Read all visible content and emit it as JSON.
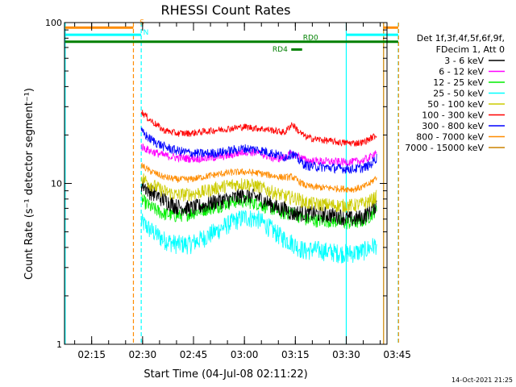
{
  "chart_data": {
    "type": "line",
    "title": "RHESSI Count Rates",
    "xlabel": "Start Time (04-Jul-08 02:11:22)",
    "ylabel": "Count Rate (s⁻¹ detector segment⁻¹)",
    "y_scale": "log",
    "ylim": [
      1,
      100
    ],
    "y_ticks": [
      1,
      10,
      100
    ],
    "y_tick_labels": [
      "1",
      "10",
      "100"
    ],
    "xlim_minutes": [
      7,
      102
    ],
    "x_ticks": [
      {
        "minute": 15,
        "label": "02:15"
      },
      {
        "minute": 30,
        "label": "02:30"
      },
      {
        "minute": 45,
        "label": "02:45"
      },
      {
        "minute": 60,
        "label": "03:00"
      },
      {
        "minute": 75,
        "label": "03:15"
      },
      {
        "minute": 90,
        "label": "03:30"
      },
      {
        "minute": 105,
        "label": "03:45"
      }
    ],
    "grid": false,
    "legend_placement": "right",
    "legend_header": [
      "Det 1f,3f,4f,5f,6f,9f,",
      "FDecim 1, Att 0"
    ],
    "series": [
      {
        "name": "3 - 6 keV",
        "color": "#000000",
        "noise": 0.12,
        "points": [
          [
            29.6,
            10.0
          ],
          [
            32,
            9.0
          ],
          [
            36,
            8.0
          ],
          [
            40,
            7.2
          ],
          [
            44,
            7.0
          ],
          [
            48,
            7.3
          ],
          [
            52,
            7.8
          ],
          [
            56,
            8.0
          ],
          [
            60,
            8.5
          ],
          [
            64,
            8.2
          ],
          [
            68,
            7.4
          ],
          [
            70,
            7.0
          ],
          [
            72,
            7.0
          ],
          [
            74,
            6.5
          ],
          [
            76,
            6.6
          ],
          [
            78,
            6.5
          ],
          [
            80,
            6.5
          ],
          [
            84,
            6.4
          ],
          [
            88,
            6.3
          ],
          [
            90,
            6.1
          ],
          [
            92,
            6.0
          ],
          [
            95,
            6.2
          ],
          [
            97,
            6.8
          ],
          [
            99,
            7.5
          ]
        ]
      },
      {
        "name": "6 - 12 keV",
        "color": "#ff00ff",
        "noise": 0.06,
        "points": [
          [
            29.6,
            17.0
          ],
          [
            32,
            16.0
          ],
          [
            36,
            15.0
          ],
          [
            40,
            14.5
          ],
          [
            44,
            14.3
          ],
          [
            48,
            14.3
          ],
          [
            52,
            14.6
          ],
          [
            56,
            15.0
          ],
          [
            60,
            15.8
          ],
          [
            64,
            15.5
          ],
          [
            68,
            14.5
          ],
          [
            70,
            14.3
          ],
          [
            72,
            14.6
          ],
          [
            74,
            15.3
          ],
          [
            76,
            14.8
          ],
          [
            78,
            13.9
          ],
          [
            80,
            13.8
          ],
          [
            84,
            13.7
          ],
          [
            88,
            13.6
          ],
          [
            92,
            13.6
          ],
          [
            95,
            13.9
          ],
          [
            97,
            14.5
          ],
          [
            99,
            16.0
          ]
        ]
      },
      {
        "name": "12 - 25 keV",
        "color": "#00ee00",
        "noise": 0.1,
        "points": [
          [
            29.6,
            8.0
          ],
          [
            32,
            7.2
          ],
          [
            36,
            6.5
          ],
          [
            40,
            6.3
          ],
          [
            44,
            6.5
          ],
          [
            48,
            6.9
          ],
          [
            52,
            7.2
          ],
          [
            56,
            7.7
          ],
          [
            60,
            7.8
          ],
          [
            64,
            7.5
          ],
          [
            68,
            7.0
          ],
          [
            70,
            6.7
          ],
          [
            72,
            6.5
          ],
          [
            74,
            6.7
          ],
          [
            76,
            6.3
          ],
          [
            78,
            6.0
          ],
          [
            80,
            5.9
          ],
          [
            84,
            5.9
          ],
          [
            88,
            5.8
          ],
          [
            90,
            5.7
          ],
          [
            92,
            5.7
          ],
          [
            95,
            5.9
          ],
          [
            97,
            6.3
          ],
          [
            99,
            7.0
          ]
        ]
      },
      {
        "name": "25 - 50 keV",
        "color": "#00ffff",
        "noise": 0.14,
        "points": [
          [
            29.6,
            5.8
          ],
          [
            32,
            5.2
          ],
          [
            36,
            4.5
          ],
          [
            40,
            4.2
          ],
          [
            44,
            4.2
          ],
          [
            48,
            4.6
          ],
          [
            52,
            5.1
          ],
          [
            56,
            5.7
          ],
          [
            60,
            6.2
          ],
          [
            64,
            6.0
          ],
          [
            68,
            5.2
          ],
          [
            70,
            4.8
          ],
          [
            72,
            4.5
          ],
          [
            74,
            4.3
          ],
          [
            76,
            4.0
          ],
          [
            78,
            3.8
          ],
          [
            80,
            3.9
          ],
          [
            84,
            3.8
          ],
          [
            88,
            3.7
          ],
          [
            90,
            3.7
          ],
          [
            92,
            3.7
          ],
          [
            95,
            3.8
          ],
          [
            97,
            4.0
          ],
          [
            99,
            4.2
          ]
        ]
      },
      {
        "name": "50 - 100 keV",
        "color": "#cccc00",
        "noise": 0.1,
        "points": [
          [
            29.6,
            11.0
          ],
          [
            32,
            10.0
          ],
          [
            36,
            9.0
          ],
          [
            40,
            8.5
          ],
          [
            44,
            8.6
          ],
          [
            48,
            8.9
          ],
          [
            52,
            9.4
          ],
          [
            56,
            9.8
          ],
          [
            60,
            10.0
          ],
          [
            64,
            9.6
          ],
          [
            68,
            8.9
          ],
          [
            70,
            8.6
          ],
          [
            72,
            8.3
          ],
          [
            74,
            8.2
          ],
          [
            76,
            8.0
          ],
          [
            78,
            7.6
          ],
          [
            80,
            7.5
          ],
          [
            84,
            7.4
          ],
          [
            88,
            7.3
          ],
          [
            92,
            7.3
          ],
          [
            95,
            7.5
          ],
          [
            97,
            7.8
          ],
          [
            99,
            8.3
          ]
        ]
      },
      {
        "name": "100 - 300 keV",
        "color": "#ff0000",
        "noise": 0.05,
        "points": [
          [
            29.6,
            28.0
          ],
          [
            32,
            25.0
          ],
          [
            36,
            21.5
          ],
          [
            40,
            20.5
          ],
          [
            44,
            20.5
          ],
          [
            48,
            21.0
          ],
          [
            52,
            21.5
          ],
          [
            56,
            22.0
          ],
          [
            60,
            22.5
          ],
          [
            64,
            22.0
          ],
          [
            68,
            21.5
          ],
          [
            70,
            21.0
          ],
          [
            72,
            20.8
          ],
          [
            74,
            23.5
          ],
          [
            76,
            21.0
          ],
          [
            78,
            19.5
          ],
          [
            80,
            19.0
          ],
          [
            84,
            18.5
          ],
          [
            88,
            18.0
          ],
          [
            92,
            17.8
          ],
          [
            95,
            18.0
          ],
          [
            97,
            19.0
          ],
          [
            99,
            20.0
          ]
        ]
      },
      {
        "name": "300 - 800 keV",
        "color": "#0000ff",
        "noise": 0.07,
        "points": [
          [
            29.6,
            21.0
          ],
          [
            32,
            19.0
          ],
          [
            36,
            17.0
          ],
          [
            40,
            16.0
          ],
          [
            44,
            15.5
          ],
          [
            48,
            15.3
          ],
          [
            52,
            15.5
          ],
          [
            56,
            16.0
          ],
          [
            60,
            16.5
          ],
          [
            64,
            16.2
          ],
          [
            68,
            15.5
          ],
          [
            70,
            15.0
          ],
          [
            72,
            14.6
          ],
          [
            74,
            15.4
          ],
          [
            76,
            14.0
          ],
          [
            78,
            13.0
          ],
          [
            80,
            12.8
          ],
          [
            84,
            12.6
          ],
          [
            88,
            12.4
          ],
          [
            92,
            12.3
          ],
          [
            95,
            12.5
          ],
          [
            97,
            13.0
          ],
          [
            99,
            14.5
          ]
        ]
      },
      {
        "name": "800 - 7000 keV",
        "color": "#ff8c00",
        "noise": 0.05,
        "points": [
          [
            29.6,
            13.0
          ],
          [
            32,
            12.0
          ],
          [
            36,
            11.0
          ],
          [
            40,
            10.6
          ],
          [
            44,
            10.6
          ],
          [
            48,
            11.0
          ],
          [
            52,
            11.4
          ],
          [
            56,
            11.7
          ],
          [
            60,
            11.8
          ],
          [
            64,
            11.6
          ],
          [
            68,
            11.2
          ],
          [
            70,
            11.0
          ],
          [
            72,
            10.9
          ],
          [
            74,
            11.0
          ],
          [
            76,
            10.3
          ],
          [
            78,
            9.7
          ],
          [
            80,
            9.5
          ],
          [
            84,
            9.4
          ],
          [
            88,
            9.3
          ],
          [
            92,
            9.2
          ],
          [
            95,
            9.5
          ],
          [
            97,
            10.0
          ],
          [
            99,
            11.0
          ]
        ]
      },
      {
        "name": "7000 - 15000 keV",
        "color": "#cc8400",
        "noise": 0.0,
        "points": []
      }
    ],
    "annotations": [
      {
        "text": "S",
        "color": "#ff8c00",
        "x_minute": 29.8,
        "y_value": 97
      },
      {
        "text": "N",
        "color": "#00ffff",
        "x_minute": 31.0,
        "y_value": 84
      },
      {
        "text": "RD0",
        "color": "#008000",
        "x_minute": 79.5,
        "y_value": 78
      },
      {
        "text": "RD4",
        "color": "#008000",
        "x_minute": 70.5,
        "y_value": 66
      }
    ],
    "flag_bars": [
      {
        "name": "S",
        "color": "#ff8c00",
        "y_value": 93,
        "ranges": [
          [
            7.2,
            27.3
          ],
          [
            101.0,
            105.3
          ]
        ]
      },
      {
        "name": "N",
        "color": "#00ffff",
        "y_value": 84,
        "ranges": [
          [
            7.2,
            29.6
          ],
          [
            90.0,
            105.3
          ]
        ]
      },
      {
        "name": "RD0",
        "color": "#008000",
        "y_value": 76,
        "ranges": [
          [
            7.2,
            105.3
          ]
        ]
      },
      {
        "name": "RD4",
        "color": "#008000",
        "y_value": 68,
        "ranges": [
          [
            73.8,
            77.0
          ]
        ]
      }
    ],
    "vertical_lines": [
      {
        "color": "#00ffff",
        "style": "solid",
        "x_minute": 7.2
      },
      {
        "color": "#ff8c00",
        "style": "dashed",
        "x_minute": 27.3
      },
      {
        "color": "#00ffff",
        "style": "dashed",
        "x_minute": 29.6
      },
      {
        "color": "#00ffff",
        "style": "solid",
        "x_minute": 90.0
      },
      {
        "color": "#cc8400",
        "style": "solid",
        "x_minute": 101.0
      },
      {
        "color": "#00ffff",
        "style": "dashed",
        "x_minute": 105.3
      },
      {
        "color": "#ff8c00",
        "style": "dashed",
        "x_minute": 105.4
      }
    ]
  },
  "footer": {
    "date": "14-Oct-2021 21:25"
  }
}
